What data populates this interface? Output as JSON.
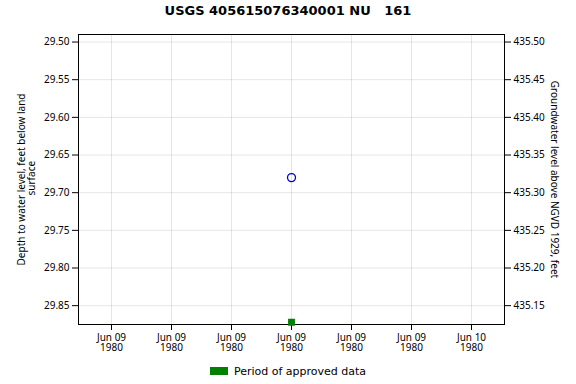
{
  "chart_data": {
    "type": "scatter",
    "title": "USGS 405615076340001 NU   161",
    "ylabel": "Depth to water level, feet below land\n surface",
    "y2label": "Groundwater level above NGVD 1929, feet",
    "categories": [
      "Jun 09\n1980",
      "Jun 09\n1980",
      "Jun 09\n1980",
      "Jun 09\n1980",
      "Jun 09\n1980",
      "Jun 09\n1980",
      "Jun 10\n1980"
    ],
    "series": [
      {
        "color": "#0000cc",
        "marker": "circle",
        "values": [
          null,
          null,
          null,
          29.68,
          null,
          null,
          null
        ]
      },
      {
        "name": "Period of approved data",
        "color": "#008000",
        "marker": "square",
        "values": [
          null,
          null,
          null,
          29.872,
          null,
          null,
          null
        ]
      }
    ],
    "ylim": [
      29.875,
      29.49
    ],
    "yticks": [
      {
        "value": 29.5,
        "label": "29.50"
      },
      29.55,
      {
        "value": 29.6,
        "label": "29.60"
      },
      29.65,
      {
        "value": 29.7,
        "label": "29.70"
      },
      29.75,
      {
        "value": 29.8,
        "label": "29.80"
      },
      29.85
    ],
    "y2lim": [
      435.125,
      435.51
    ],
    "y2ticks": [
      {
        "value": 435.5,
        "label": "435.50"
      },
      435.45,
      {
        "value": 435.4,
        "label": "435.40"
      },
      435.35,
      {
        "value": 435.3,
        "label": "435.30"
      },
      435.25,
      {
        "value": 435.2,
        "label": "435.20"
      },
      435.15
    ],
    "grid": true,
    "legend": "bottom"
  }
}
